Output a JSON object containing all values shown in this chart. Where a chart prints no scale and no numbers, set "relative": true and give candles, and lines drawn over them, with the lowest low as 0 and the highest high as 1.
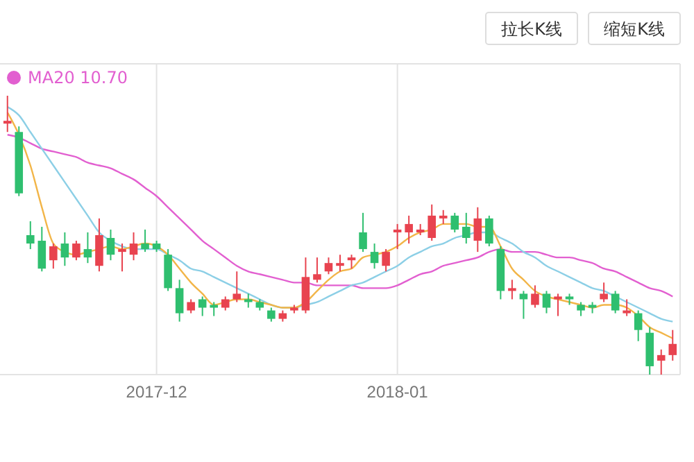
{
  "chart_data": {
    "type": "candlestick",
    "relative": true,
    "grid": "x",
    "legend": "top left",
    "annotations": [
      "拉长K线",
      "缩短K线"
    ],
    "categories": [
      null,
      null,
      null,
      null,
      null,
      null,
      null,
      null,
      null,
      null,
      null,
      null,
      null,
      "2017-12",
      null,
      null,
      null,
      null,
      null,
      null,
      null,
      null,
      null,
      null,
      null,
      null,
      null,
      null,
      null,
      null,
      null,
      null,
      null,
      null,
      "2018-01",
      null,
      null,
      null,
      null,
      null,
      null,
      null,
      null,
      null,
      null,
      null,
      null,
      null,
      null,
      null,
      null,
      null,
      null,
      null,
      null,
      null,
      null,
      null,
      null
    ],
    "ohlc": [
      [
        0.9,
        1.0,
        0.87,
        0.91
      ],
      [
        0.87,
        0.89,
        0.64,
        0.65
      ],
      [
        0.5,
        0.55,
        0.45,
        0.47
      ],
      [
        0.48,
        0.53,
        0.37,
        0.38
      ],
      [
        0.41,
        0.47,
        0.38,
        0.46
      ],
      [
        0.47,
        0.51,
        0.39,
        0.42
      ],
      [
        0.42,
        0.48,
        0.41,
        0.47
      ],
      [
        0.45,
        0.51,
        0.4,
        0.42
      ],
      [
        0.39,
        0.56,
        0.37,
        0.5
      ],
      [
        0.49,
        0.52,
        0.41,
        0.43
      ],
      [
        0.44,
        0.47,
        0.37,
        0.45
      ],
      [
        0.43,
        0.51,
        0.41,
        0.47
      ],
      [
        0.47,
        0.52,
        0.44,
        0.45
      ],
      [
        0.47,
        0.48,
        0.44,
        0.45
      ],
      [
        0.43,
        0.45,
        0.3,
        0.31
      ],
      [
        0.31,
        0.34,
        0.19,
        0.22
      ],
      [
        0.23,
        0.27,
        0.22,
        0.26
      ],
      [
        0.27,
        0.28,
        0.21,
        0.24
      ],
      [
        0.25,
        0.26,
        0.21,
        0.24
      ],
      [
        0.24,
        0.28,
        0.23,
        0.27
      ],
      [
        0.27,
        0.37,
        0.26,
        0.29
      ],
      [
        0.27,
        0.29,
        0.24,
        0.26
      ],
      [
        0.26,
        0.27,
        0.23,
        0.24
      ],
      [
        0.23,
        0.24,
        0.19,
        0.2
      ],
      [
        0.2,
        0.23,
        0.19,
        0.22
      ],
      [
        0.23,
        0.25,
        0.22,
        0.24
      ],
      [
        0.23,
        0.42,
        0.22,
        0.35
      ],
      [
        0.34,
        0.42,
        0.33,
        0.36
      ],
      [
        0.37,
        0.42,
        0.36,
        0.4
      ],
      [
        0.39,
        0.43,
        0.37,
        0.4
      ],
      [
        0.41,
        0.43,
        0.38,
        0.42
      ],
      [
        0.51,
        0.58,
        0.44,
        0.45
      ],
      [
        0.44,
        0.47,
        0.38,
        0.4
      ],
      [
        0.39,
        0.45,
        0.37,
        0.44
      ],
      [
        0.51,
        0.54,
        0.45,
        0.52
      ],
      [
        0.51,
        0.57,
        0.47,
        0.54
      ],
      [
        0.51,
        0.54,
        0.5,
        0.52
      ],
      [
        0.49,
        0.61,
        0.48,
        0.57
      ],
      [
        0.56,
        0.59,
        0.54,
        0.57
      ],
      [
        0.57,
        0.58,
        0.51,
        0.52
      ],
      [
        0.53,
        0.58,
        0.47,
        0.49
      ],
      [
        0.48,
        0.6,
        0.44,
        0.56
      ],
      [
        0.56,
        0.57,
        0.46,
        0.47
      ],
      [
        0.45,
        0.46,
        0.27,
        0.3
      ],
      [
        0.3,
        0.34,
        0.27,
        0.31
      ],
      [
        0.29,
        0.3,
        0.2,
        0.27
      ],
      [
        0.25,
        0.32,
        0.24,
        0.29
      ],
      [
        0.29,
        0.3,
        0.22,
        0.24
      ],
      [
        0.27,
        0.29,
        0.21,
        0.28
      ],
      [
        0.28,
        0.29,
        0.25,
        0.27
      ],
      [
        0.25,
        0.26,
        0.21,
        0.23
      ],
      [
        0.25,
        0.26,
        0.22,
        0.24
      ],
      [
        0.27,
        0.33,
        0.26,
        0.29
      ],
      [
        0.29,
        0.3,
        0.22,
        0.23
      ],
      [
        0.22,
        0.27,
        0.21,
        0.23
      ],
      [
        0.22,
        0.23,
        0.12,
        0.16
      ],
      [
        0.15,
        0.17,
        0.0,
        0.03
      ],
      [
        0.05,
        0.09,
        0.0,
        0.07
      ],
      [
        0.07,
        0.16,
        0.05,
        0.11
      ]
    ],
    "colors": [
      "#e8434f",
      "#2fbf6f",
      "#2fbf6f",
      "#2fbf6f",
      "#e8434f",
      "#2fbf6f",
      "#e8434f",
      "#2fbf6f",
      "#e8434f",
      "#2fbf6f",
      "#e8434f",
      "#e8434f",
      "#2fbf6f",
      "#2fbf6f",
      "#2fbf6f",
      "#2fbf6f",
      "#e8434f",
      "#2fbf6f",
      "#2fbf6f",
      "#e8434f",
      "#e8434f",
      "#2fbf6f",
      "#2fbf6f",
      "#2fbf6f",
      "#e8434f",
      "#e8434f",
      "#e8434f",
      "#e8434f",
      "#e8434f",
      "#e8434f",
      "#e8434f",
      "#2fbf6f",
      "#2fbf6f",
      "#e8434f",
      "#e8434f",
      "#e8434f",
      "#e8434f",
      "#e8434f",
      "#e8434f",
      "#2fbf6f",
      "#2fbf6f",
      "#e8434f",
      "#2fbf6f",
      "#2fbf6f",
      "#e8434f",
      "#2fbf6f",
      "#e8434f",
      "#2fbf6f",
      "#e8434f",
      "#2fbf6f",
      "#2fbf6f",
      "#2fbf6f",
      "#e8434f",
      "#2fbf6f",
      "#e8434f",
      "#2fbf6f",
      "#2fbf6f",
      "#e8434f",
      "#e8434f"
    ],
    "series": [
      {
        "type": "line",
        "name": "MA20 10.70",
        "color": "#e25fd0",
        "values": [
          0.86,
          0.85,
          0.83,
          0.81,
          0.8,
          0.79,
          0.78,
          0.76,
          0.75,
          0.74,
          0.72,
          0.7,
          0.67,
          0.64,
          0.6,
          0.56,
          0.52,
          0.48,
          0.45,
          0.42,
          0.39,
          0.37,
          0.36,
          0.35,
          0.34,
          0.33,
          0.33,
          0.32,
          0.32,
          0.32,
          0.32,
          0.31,
          0.31,
          0.31,
          0.32,
          0.34,
          0.36,
          0.37,
          0.39,
          0.4,
          0.41,
          0.42,
          0.44,
          0.45,
          0.44,
          0.44,
          0.44,
          0.43,
          0.42,
          0.42,
          0.41,
          0.4,
          0.38,
          0.37,
          0.35,
          0.33,
          0.31,
          0.3,
          0.28
        ]
      },
      {
        "type": "line",
        "color": "#8ccfe6",
        "values": [
          0.96,
          0.93,
          0.87,
          0.81,
          0.75,
          0.69,
          0.63,
          0.57,
          0.51,
          0.48,
          0.46,
          0.45,
          0.45,
          0.45,
          0.43,
          0.41,
          0.38,
          0.37,
          0.35,
          0.33,
          0.31,
          0.29,
          0.27,
          0.25,
          0.24,
          0.24,
          0.25,
          0.26,
          0.28,
          0.3,
          0.32,
          0.33,
          0.35,
          0.37,
          0.39,
          0.42,
          0.44,
          0.46,
          0.47,
          0.49,
          0.5,
          0.51,
          0.51,
          0.49,
          0.47,
          0.44,
          0.42,
          0.39,
          0.37,
          0.35,
          0.33,
          0.31,
          0.3,
          0.28,
          0.26,
          0.24,
          0.22,
          0.2,
          0.19
        ]
      },
      {
        "type": "line",
        "color": "#f2b548",
        "values": [
          0.94,
          0.86,
          0.75,
          0.6,
          0.47,
          0.44,
          0.43,
          0.44,
          0.45,
          0.46,
          0.45,
          0.46,
          0.47,
          0.46,
          0.43,
          0.38,
          0.33,
          0.29,
          0.25,
          0.26,
          0.27,
          0.27,
          0.26,
          0.25,
          0.24,
          0.24,
          0.26,
          0.3,
          0.34,
          0.37,
          0.38,
          0.42,
          0.43,
          0.44,
          0.46,
          0.49,
          0.51,
          0.52,
          0.54,
          0.54,
          0.54,
          0.53,
          0.53,
          0.46,
          0.38,
          0.34,
          0.3,
          0.28,
          0.27,
          0.26,
          0.25,
          0.24,
          0.25,
          0.25,
          0.24,
          0.21,
          0.17,
          0.15,
          0.13
        ]
      }
    ]
  }
}
